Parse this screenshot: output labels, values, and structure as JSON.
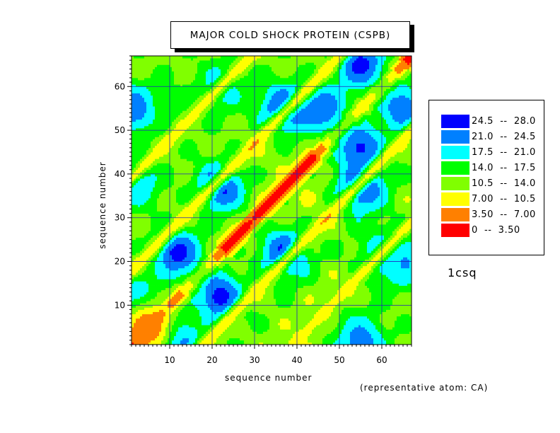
{
  "chart_data": {
    "type": "heatmap",
    "title": "MAJOR COLD SHOCK PROTEIN (CSPB)",
    "xlabel": "sequence number",
    "ylabel": "sequence number",
    "annotation": "1csq",
    "note": "(representative atom: CA)",
    "xlim": [
      1,
      67
    ],
    "ylim": [
      1,
      67
    ],
    "x_ticks": [
      10,
      20,
      30,
      40,
      50,
      60
    ],
    "y_ticks": [
      10,
      20,
      30,
      40,
      50,
      60
    ],
    "grid": true,
    "legend_position": "right",
    "levels": [
      {
        "label": "24.5  --  28.0",
        "min": 24.5,
        "max": 28.0,
        "color": "#0000ff"
      },
      {
        "label": "21.0  --  24.5",
        "min": 21.0,
        "max": 24.5,
        "color": "#0080ff"
      },
      {
        "label": "17.5  --  21.0",
        "min": 17.5,
        "max": 21.0,
        "color": "#00ffff"
      },
      {
        "label": "14.0  --  17.5",
        "min": 14.0,
        "max": 17.5,
        "color": "#00ff00"
      },
      {
        "label": "10.5  --  14.0",
        "min": 10.5,
        "max": 14.0,
        "color": "#80ff00"
      },
      {
        "label": "7.00  --  10.5",
        "min": 7.0,
        "max": 10.5,
        "color": "#ffff00"
      },
      {
        "label": "3.50  --  7.00",
        "min": 3.5,
        "max": 7.0,
        "color": "#ff8000"
      },
      {
        "label": "0  --  3.50",
        "min": 0,
        "max": 3.5,
        "color": "#ff0000"
      }
    ],
    "features": [
      {
        "x": 55,
        "y": 65,
        "value": 26
      },
      {
        "x": 37,
        "y": 55,
        "value": 26
      },
      {
        "x": 55,
        "y": 37,
        "value": 26
      },
      {
        "x": 55,
        "y": 46,
        "value": 25
      },
      {
        "x": 46,
        "y": 55,
        "value": 24
      },
      {
        "x": 22,
        "y": 37,
        "value": 26
      },
      {
        "x": 37,
        "y": 22,
        "value": 26
      },
      {
        "x": 12,
        "y": 22,
        "value": 26
      },
      {
        "x": 22,
        "y": 12,
        "value": 26
      },
      {
        "x": 2,
        "y": 55,
        "value": 24
      },
      {
        "x": 65,
        "y": 55,
        "value": 24
      },
      {
        "x": 12,
        "y": 2,
        "value": 24
      },
      {
        "x": 2,
        "y": 12,
        "value": 22
      },
      {
        "x": 55,
        "y": 2,
        "value": 23
      },
      {
        "x": 65,
        "y": 20,
        "value": 22
      },
      {
        "x": 2,
        "y": 38,
        "value": 21
      },
      {
        "x": 22,
        "y": 60,
        "value": 20
      },
      {
        "x": 60,
        "y": 22,
        "value": 20
      },
      {
        "x": 5,
        "y": 5,
        "value": 4
      },
      {
        "x": 12,
        "y": 55,
        "value": 15
      }
    ],
    "band_features": [
      {
        "offset": 17,
        "value": 5,
        "width": 1.6
      },
      {
        "offset": -17,
        "value": 5,
        "width": 1.6
      },
      {
        "offset": 38,
        "value": 6,
        "width": 1.5
      },
      {
        "offset": -38,
        "value": 6,
        "width": 1.5
      }
    ]
  }
}
